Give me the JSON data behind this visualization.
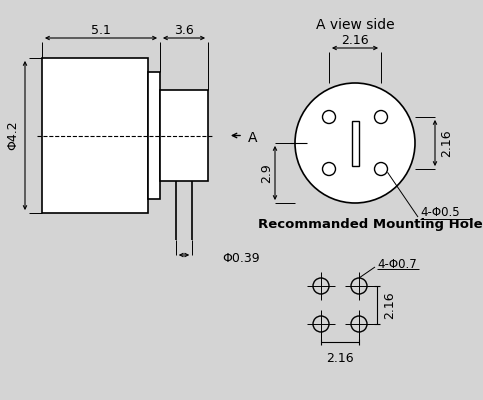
{
  "bg_color": "#d4d4d4",
  "line_color": "#000000",
  "title_side": "A view side",
  "title_mount": "Recommanded Mounting Hole",
  "dims": {
    "dim_51": "5.1",
    "dim_36": "3.6",
    "dim_42": "Φ4.2",
    "dim_039": "Φ0.39",
    "dim_216_top": "2.16",
    "dim_216_right": "2.16",
    "dim_29": "2.9",
    "dim_4phi05": "4-Φ0.5",
    "dim_4phi07": "4-Φ0.7",
    "dim_216_mh_h": "2.16",
    "dim_216_mh_v": "2.16",
    "label_a": "A"
  }
}
